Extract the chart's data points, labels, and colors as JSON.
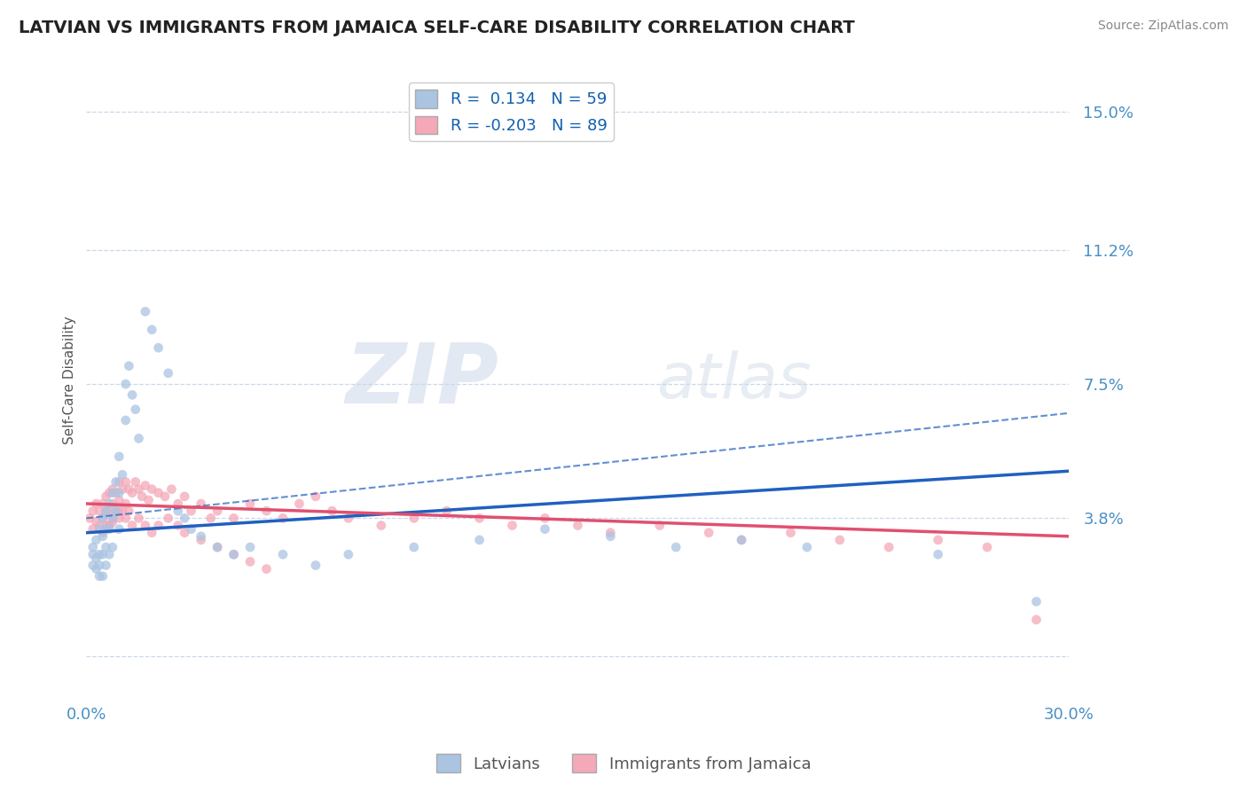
{
  "title": "LATVIAN VS IMMIGRANTS FROM JAMAICA SELF-CARE DISABILITY CORRELATION CHART",
  "source": "Source: ZipAtlas.com",
  "ylabel": "Self-Care Disability",
  "xmin": 0.0,
  "xmax": 0.3,
  "ymin": -0.01,
  "ymax": 0.162,
  "latvian_color": "#aac4e2",
  "jamaica_color": "#f4a8b8",
  "latvian_trend_color": "#2060c0",
  "jamaica_trend_color": "#e05070",
  "R_latvian": 0.134,
  "N_latvian": 59,
  "R_jamaica": -0.203,
  "N_jamaica": 89,
  "grid_color": "#c8d8ea",
  "bg_color": "#ffffff",
  "title_color": "#222222",
  "axis_label_color": "#4a90c4",
  "watermark_zip": "ZIP",
  "watermark_atlas": "atlas",
  "latvian_x": [
    0.002,
    0.002,
    0.002,
    0.003,
    0.003,
    0.003,
    0.004,
    0.004,
    0.004,
    0.004,
    0.005,
    0.005,
    0.005,
    0.005,
    0.006,
    0.006,
    0.006,
    0.006,
    0.007,
    0.007,
    0.007,
    0.008,
    0.008,
    0.008,
    0.009,
    0.009,
    0.01,
    0.01,
    0.01,
    0.011,
    0.012,
    0.012,
    0.013,
    0.014,
    0.015,
    0.016,
    0.018,
    0.02,
    0.022,
    0.025,
    0.028,
    0.03,
    0.032,
    0.035,
    0.04,
    0.045,
    0.05,
    0.06,
    0.07,
    0.08,
    0.1,
    0.12,
    0.14,
    0.16,
    0.18,
    0.2,
    0.22,
    0.26,
    0.29
  ],
  "latvian_y": [
    0.03,
    0.028,
    0.025,
    0.032,
    0.027,
    0.024,
    0.035,
    0.028,
    0.025,
    0.022,
    0.038,
    0.033,
    0.028,
    0.022,
    0.04,
    0.035,
    0.03,
    0.025,
    0.042,
    0.035,
    0.028,
    0.045,
    0.038,
    0.03,
    0.048,
    0.04,
    0.055,
    0.045,
    0.035,
    0.05,
    0.075,
    0.065,
    0.08,
    0.072,
    0.068,
    0.06,
    0.095,
    0.09,
    0.085,
    0.078,
    0.04,
    0.038,
    0.035,
    0.033,
    0.03,
    0.028,
    0.03,
    0.028,
    0.025,
    0.028,
    0.03,
    0.032,
    0.035,
    0.033,
    0.03,
    0.032,
    0.03,
    0.028,
    0.015
  ],
  "jamaica_x": [
    0.001,
    0.002,
    0.002,
    0.003,
    0.003,
    0.004,
    0.004,
    0.005,
    0.005,
    0.005,
    0.006,
    0.006,
    0.006,
    0.007,
    0.007,
    0.007,
    0.008,
    0.008,
    0.008,
    0.009,
    0.009,
    0.01,
    0.01,
    0.01,
    0.011,
    0.011,
    0.012,
    0.012,
    0.013,
    0.013,
    0.014,
    0.015,
    0.016,
    0.017,
    0.018,
    0.019,
    0.02,
    0.022,
    0.024,
    0.026,
    0.028,
    0.03,
    0.032,
    0.035,
    0.038,
    0.04,
    0.045,
    0.05,
    0.055,
    0.06,
    0.065,
    0.07,
    0.075,
    0.08,
    0.09,
    0.1,
    0.11,
    0.12,
    0.13,
    0.14,
    0.15,
    0.16,
    0.175,
    0.19,
    0.2,
    0.215,
    0.23,
    0.245,
    0.26,
    0.275,
    0.006,
    0.007,
    0.008,
    0.01,
    0.012,
    0.014,
    0.016,
    0.018,
    0.02,
    0.022,
    0.025,
    0.028,
    0.03,
    0.035,
    0.04,
    0.045,
    0.05,
    0.055,
    0.29
  ],
  "jamaica_y": [
    0.038,
    0.04,
    0.035,
    0.042,
    0.037,
    0.04,
    0.036,
    0.042,
    0.038,
    0.034,
    0.044,
    0.04,
    0.036,
    0.045,
    0.04,
    0.036,
    0.046,
    0.042,
    0.037,
    0.045,
    0.04,
    0.048,
    0.043,
    0.038,
    0.046,
    0.04,
    0.048,
    0.042,
    0.046,
    0.04,
    0.045,
    0.048,
    0.046,
    0.044,
    0.047,
    0.043,
    0.046,
    0.045,
    0.044,
    0.046,
    0.042,
    0.044,
    0.04,
    0.042,
    0.038,
    0.04,
    0.038,
    0.042,
    0.04,
    0.038,
    0.042,
    0.044,
    0.04,
    0.038,
    0.036,
    0.038,
    0.04,
    0.038,
    0.036,
    0.038,
    0.036,
    0.034,
    0.036,
    0.034,
    0.032,
    0.034,
    0.032,
    0.03,
    0.032,
    0.03,
    0.035,
    0.036,
    0.038,
    0.04,
    0.038,
    0.036,
    0.038,
    0.036,
    0.034,
    0.036,
    0.038,
    0.036,
    0.034,
    0.032,
    0.03,
    0.028,
    0.026,
    0.024,
    0.01
  ],
  "trend_xstart": 0.0,
  "trend_xend": 0.3,
  "latvian_trend_start_y": 0.034,
  "latvian_trend_end_y": 0.051,
  "jamaica_trend_start_y": 0.042,
  "jamaica_trend_end_y": 0.033,
  "dashed_trend_start_y": 0.038,
  "dashed_trend_end_y": 0.067
}
